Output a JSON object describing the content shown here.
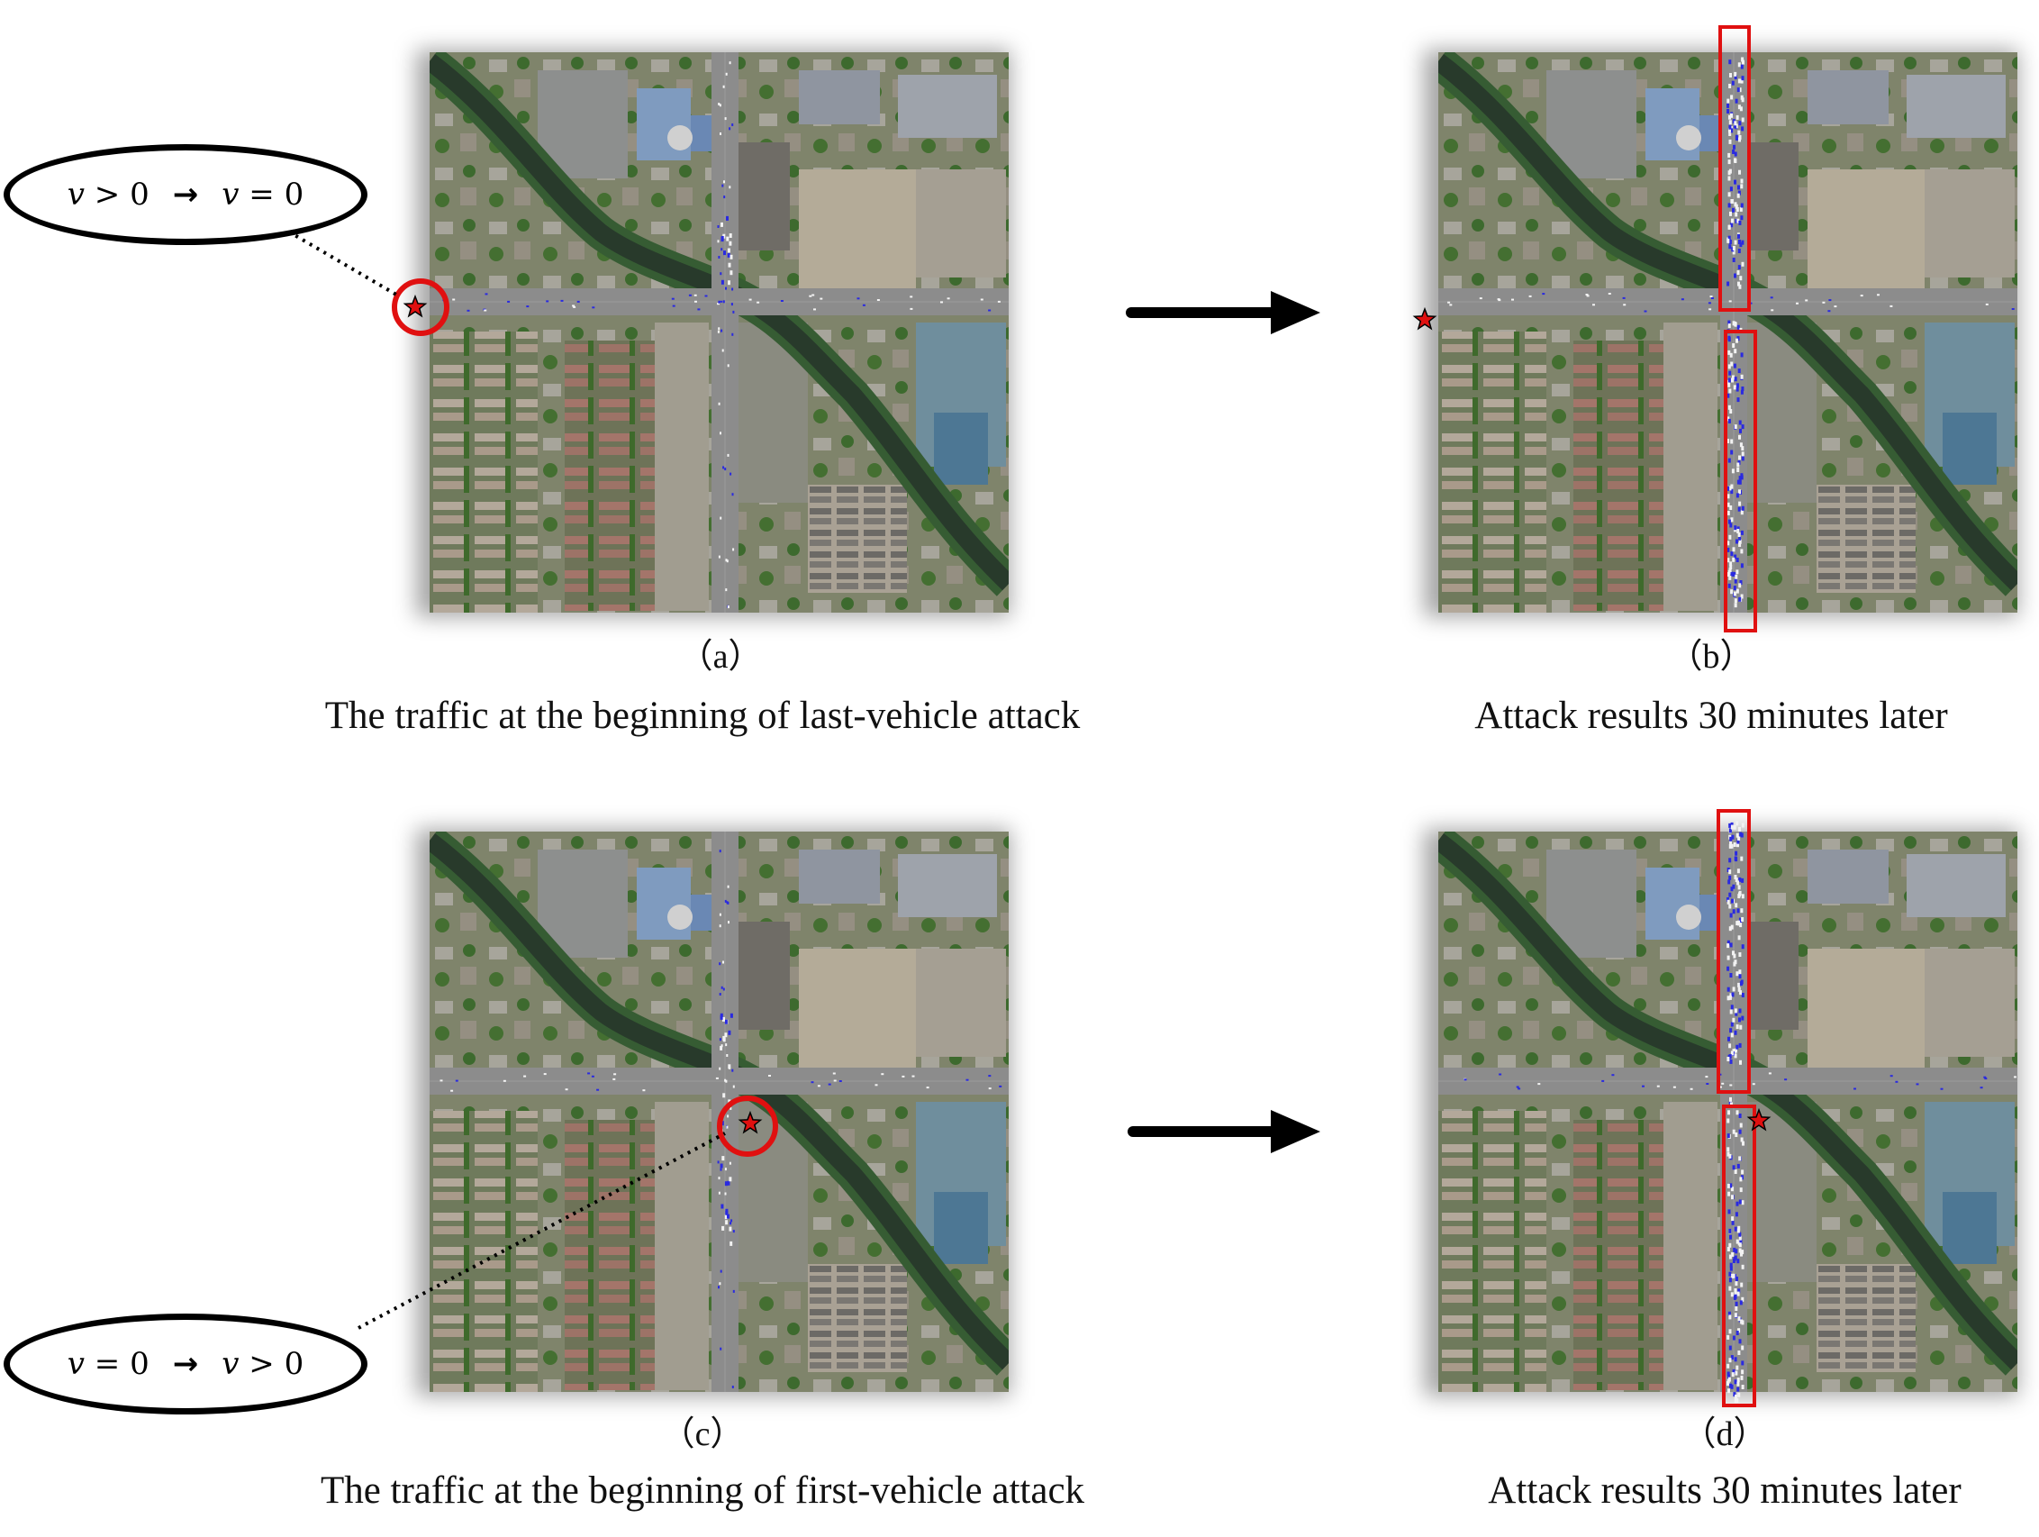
{
  "panels": [
    {
      "id": "a",
      "label": "（a）",
      "caption": "The traffic at the beginning of last-vehicle attack"
    },
    {
      "id": "b",
      "label": "（b）",
      "caption": "Attack results 30 minutes later"
    },
    {
      "id": "c",
      "label": "（c）",
      "caption": "The traffic at the beginning of first-vehicle attack"
    },
    {
      "id": "d",
      "label": "（d）",
      "caption": "Attack results 30 minutes later"
    }
  ],
  "callouts": {
    "top": {
      "left_var": "v",
      "left_op": " > 0",
      "arrow": "→",
      "right_var": "v",
      "right_op": " = 0"
    },
    "bottom": {
      "left_var": "v",
      "left_op": " = 0",
      "arrow": "→",
      "right_var": "v",
      "right_op": " > 0"
    }
  },
  "colors": {
    "highlight": "#e01010",
    "star": "#e01010",
    "road": "#8c8c8c",
    "vehicle": "#2a2ae0",
    "arrow": "#000000"
  },
  "icons": [
    "star-icon",
    "right-arrow-icon",
    "highlight-circle",
    "highlight-rectangle"
  ]
}
